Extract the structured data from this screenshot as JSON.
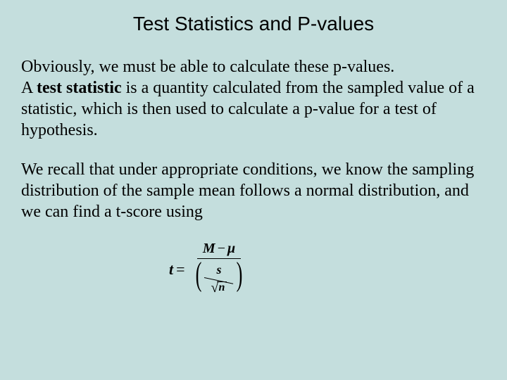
{
  "colors": {
    "background": "#c4dedd",
    "text": "#000000"
  },
  "typography": {
    "title_family": "Arial",
    "title_size_pt": 28,
    "body_family": "Times New Roman",
    "body_size_pt": 24,
    "formula_size_pt": 22
  },
  "title": "Test Statistics and P-values",
  "para1": {
    "line1": "Obviously, we must be able to calculate these p-values.",
    "line2a": "A ",
    "bold": "test statistic",
    "line2b": " is a quantity calculated from the sampled value of a statistic, which is then used to calculate a p-value for a test of hypothesis."
  },
  "para2": "We recall that under appropriate conditions, we know the sampling distribution of the sample mean follows a normal distribution, and we can find a t-score using",
  "formula": {
    "lhs": "t",
    "eq": "=",
    "numerator_left": "M",
    "numerator_op": "−",
    "numerator_right": "μ",
    "denom_inner_num": "s",
    "denom_inner_den": "n"
  }
}
